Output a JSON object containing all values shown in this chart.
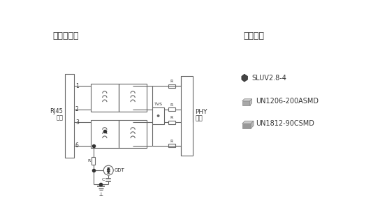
{
  "title_left": "防护电路图",
  "title_right": "产品外观",
  "bg_color": "#ffffff",
  "text_color": "#333333",
  "line_color": "#666666",
  "legend_items": [
    {
      "label": "SLUV2.8-4"
    },
    {
      "label": "UN1206-200ASMD"
    },
    {
      "label": "UN1812-90CSMD"
    }
  ],
  "rj45_label": [
    "RJ45",
    "接口"
  ],
  "phy_label": [
    "PHY",
    "芯片"
  ],
  "tvs_label": "TVS",
  "gdt_label": "GDT",
  "font_cjk": "SimHei"
}
